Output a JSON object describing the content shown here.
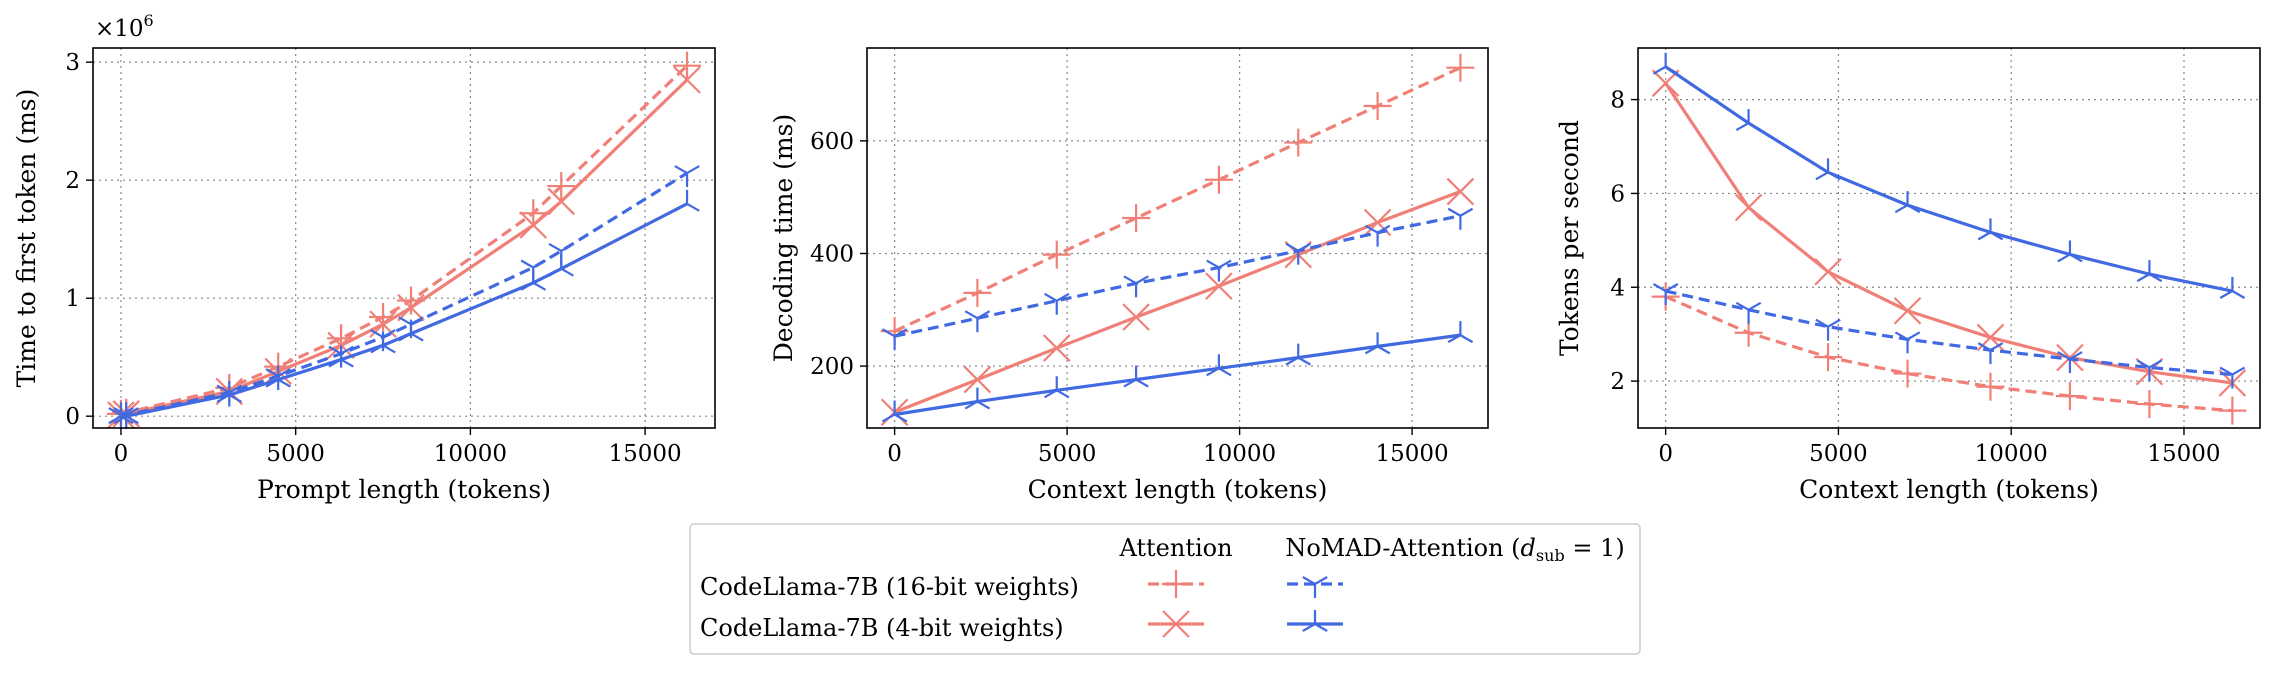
{
  "colors": {
    "attention": "#f08077",
    "nomad": "#4169e1",
    "grid": "#888888"
  },
  "legend": {
    "col_headers": [
      "Attention",
      "NoMAD-Attention (",
      "d",
      "sub",
      " = 1)"
    ],
    "rows": [
      "CodeLlama-7B (16-bit weights)",
      "CodeLlama-7B (4-bit weights)"
    ]
  },
  "chart_data": [
    {
      "type": "line",
      "xlabel": "Prompt length (tokens)",
      "ylabel": "Time to first token (ms)",
      "y_multiplier_label": "×10",
      "y_multiplier_exp": "6",
      "xlim": [
        -800,
        17000
      ],
      "ylim": [
        -0.1,
        3.12
      ],
      "xticks": [
        0,
        5000,
        10000,
        15000
      ],
      "yticks": [
        0,
        1,
        2,
        3
      ],
      "grid": true,
      "series": [
        {
          "model": "16-bit",
          "method": "Attention",
          "x": [
            0,
            150,
            3100,
            4500,
            6300,
            7500,
            8300,
            11800,
            12600,
            16200
          ],
          "y": [
            0.02,
            0.03,
            0.24,
            0.42,
            0.66,
            0.84,
            0.98,
            1.72,
            1.95,
            2.97
          ]
        },
        {
          "model": "4-bit",
          "method": "Attention",
          "x": [
            0,
            150,
            3100,
            4500,
            6300,
            7500,
            8300,
            11800,
            12600,
            16200
          ],
          "y": [
            0.01,
            0.02,
            0.21,
            0.38,
            0.6,
            0.78,
            0.92,
            1.62,
            1.82,
            2.85
          ]
        },
        {
          "model": "16-bit",
          "method": "NoMAD-Attention",
          "x": [
            0,
            150,
            3100,
            4500,
            6300,
            7500,
            8300,
            11800,
            12600,
            16200
          ],
          "y": [
            0.01,
            0.01,
            0.2,
            0.34,
            0.53,
            0.67,
            0.78,
            1.26,
            1.4,
            2.06
          ]
        },
        {
          "model": "4-bit",
          "method": "NoMAD-Attention",
          "x": [
            0,
            150,
            3100,
            4500,
            6300,
            7500,
            8300,
            11800,
            12600,
            16200
          ],
          "y": [
            0.0,
            0.0,
            0.18,
            0.31,
            0.48,
            0.6,
            0.7,
            1.13,
            1.25,
            1.8
          ]
        }
      ]
    },
    {
      "type": "line",
      "xlabel": "Context length (tokens)",
      "ylabel": "Decoding time (ms)",
      "xlim": [
        -800,
        17200
      ],
      "ylim": [
        90,
        765
      ],
      "xticks": [
        0,
        5000,
        10000,
        15000
      ],
      "yticks": [
        200,
        400,
        600
      ],
      "grid": true,
      "series": [
        {
          "model": "16-bit",
          "method": "Attention",
          "x": [
            0,
            2400,
            4700,
            7000,
            9400,
            11700,
            14000,
            16400
          ],
          "y": [
            262,
            330,
            398,
            463,
            531,
            597,
            662,
            730
          ]
        },
        {
          "model": "4-bit",
          "method": "Attention",
          "x": [
            0,
            2400,
            4700,
            7000,
            9400,
            11700,
            14000,
            16400
          ],
          "y": [
            118,
            176,
            232,
            287,
            342,
            398,
            455,
            510
          ]
        },
        {
          "model": "16-bit",
          "method": "NoMAD-Attention",
          "x": [
            0,
            2400,
            4700,
            7000,
            9400,
            11700,
            14000,
            16400
          ],
          "y": [
            253,
            285,
            316,
            347,
            375,
            405,
            437,
            467
          ]
        },
        {
          "model": "4-bit",
          "method": "NoMAD-Attention",
          "x": [
            0,
            2400,
            4700,
            7000,
            9400,
            11700,
            14000,
            16400
          ],
          "y": [
            114,
            137,
            157,
            176,
            196,
            215,
            235,
            255
          ]
        }
      ]
    },
    {
      "type": "line",
      "xlabel": "Context length (tokens)",
      "ylabel": "Tokens per second",
      "xlim": [
        -800,
        17200
      ],
      "ylim": [
        1.0,
        9.1
      ],
      "xticks": [
        0,
        5000,
        10000,
        15000
      ],
      "yticks": [
        2,
        4,
        6,
        8
      ],
      "grid": true,
      "series": [
        {
          "model": "16-bit",
          "method": "Attention",
          "x": [
            0,
            2400,
            4700,
            7000,
            9400,
            11700,
            14000,
            16400
          ],
          "y": [
            3.8,
            3.03,
            2.51,
            2.16,
            1.88,
            1.68,
            1.51,
            1.37
          ]
        },
        {
          "model": "4-bit",
          "method": "Attention",
          "x": [
            0,
            2400,
            4700,
            7000,
            9400,
            11700,
            14000,
            16400
          ],
          "y": [
            8.35,
            5.7,
            4.33,
            3.5,
            2.93,
            2.5,
            2.2,
            1.96
          ]
        },
        {
          "model": "16-bit",
          "method": "NoMAD-Attention",
          "x": [
            0,
            2400,
            4700,
            7000,
            9400,
            11700,
            14000,
            16400
          ],
          "y": [
            3.92,
            3.52,
            3.16,
            2.89,
            2.66,
            2.47,
            2.29,
            2.14
          ]
        },
        {
          "model": "4-bit",
          "method": "NoMAD-Attention",
          "x": [
            0,
            2400,
            4700,
            7000,
            9400,
            11700,
            14000,
            16400
          ],
          "y": [
            8.7,
            7.5,
            6.45,
            5.75,
            5.17,
            4.7,
            4.28,
            3.92
          ]
        }
      ]
    }
  ]
}
